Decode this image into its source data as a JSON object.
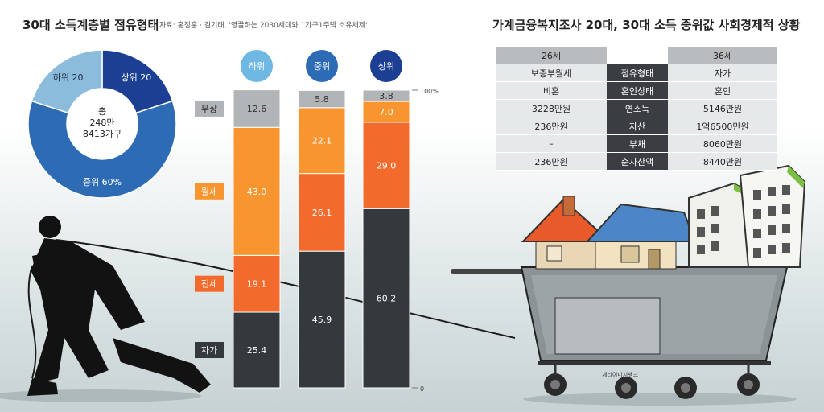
{
  "title_left": "30대 소득계층별 점유형태",
  "source": "자료: 홍정훈 · 김기태, '영끌하는 2030세대와 1가구1주택 소유체제'",
  "title_right": "가계금융복지조사 20대, 30대 소득 중위값 사회경제적 상황",
  "donut": {
    "center_label": [
      "총",
      "248만",
      "8413가구"
    ],
    "segments": [
      {
        "label": "상위 20",
        "value": 20,
        "color": "#1c3f94"
      },
      {
        "label": "중위 60%",
        "value": 60,
        "color": "#2d6cb5"
      },
      {
        "label": "하위 20",
        "value": 20,
        "color": "#8bbcdc"
      }
    ]
  },
  "chart_data": {
    "type": "bar",
    "stacked": true,
    "categories": [
      "하위",
      "중위",
      "상위"
    ],
    "axis_labels": [
      "100%",
      "0"
    ],
    "ylim": [
      0,
      100
    ],
    "series": [
      {
        "name": "자가",
        "values": [
          25.4,
          45.9,
          60.2
        ],
        "color": "#34393e"
      },
      {
        "name": "전세",
        "values": [
          19.1,
          26.1,
          29.0
        ],
        "color": "#f26a2c"
      },
      {
        "name": "월세",
        "values": [
          43.0,
          22.1,
          7.0
        ],
        "color": "#f9952f"
      },
      {
        "name": "무상",
        "values": [
          12.6,
          5.8,
          3.8
        ],
        "color": "#b1b5b8"
      }
    ]
  },
  "table": {
    "headers": [
      "26세",
      "",
      "36세"
    ],
    "rows": [
      [
        "보증부월세",
        "점유형태",
        "자가"
      ],
      [
        "비혼",
        "혼인상태",
        "혼인"
      ],
      [
        "3228만원",
        "연소득",
        "5146만원"
      ],
      [
        "236만원",
        "자산",
        "1억6500만원"
      ],
      [
        "–",
        "부채",
        "8060만원"
      ],
      [
        "236만원",
        "순자산액",
        "8440만원"
      ]
    ]
  },
  "credit": "게티이미지뱅크"
}
